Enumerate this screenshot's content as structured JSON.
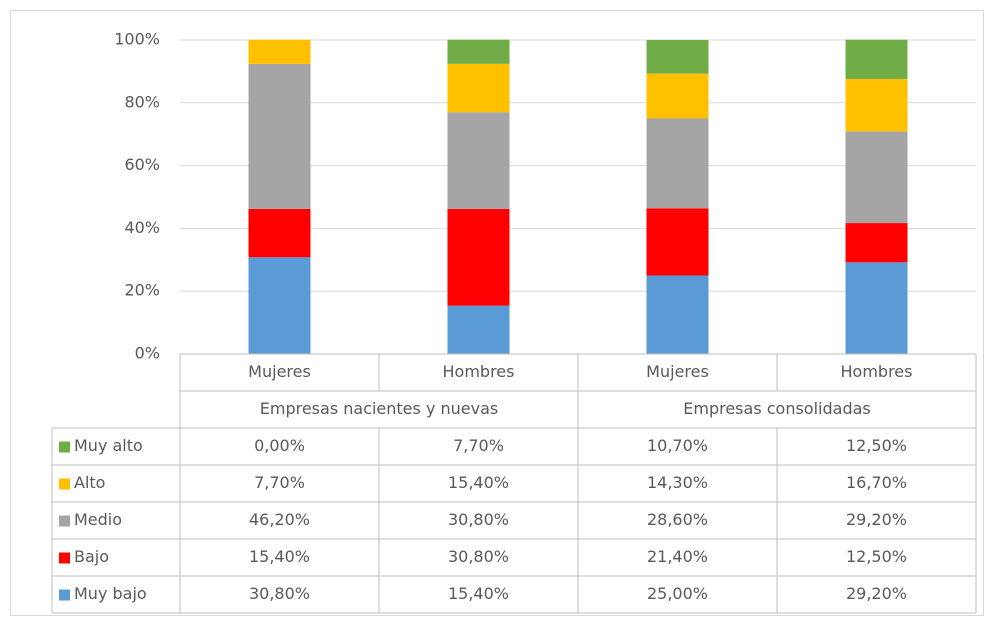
{
  "chart_data": {
    "type": "stacked_bar",
    "categories": [
      "Mujeres",
      "Hombres",
      "Mujeres",
      "Hombres"
    ],
    "groups": [
      "Empresas nacientes y nuevas",
      "Empresas consolidadas"
    ],
    "series": [
      {
        "name": "Muy bajo",
        "color": "#5b9bd5",
        "values": [
          30.8,
          15.4,
          25,
          29.2
        ],
        "value_labels": [
          "30,80%",
          "15,40%",
          "25,00%",
          "29,20%"
        ]
      },
      {
        "name": "Bajo",
        "color": "#ff0000",
        "values": [
          15.4,
          30.8,
          21.4,
          12.5
        ],
        "value_labels": [
          "15,40%",
          "30,80%",
          "21,40%",
          "12,50%"
        ]
      },
      {
        "name": "Medio",
        "color": "#a5a5a5",
        "values": [
          46.2,
          30.8,
          28.6,
          29.2
        ],
        "value_labels": [
          "46,20%",
          "30,80%",
          "28,60%",
          "29,20%"
        ]
      },
      {
        "name": "Alto",
        "color": "#ffc000",
        "values": [
          7.7,
          15.4,
          14.3,
          16.7
        ],
        "value_labels": [
          "7,70%",
          "15,40%",
          "14,30%",
          "16,70%"
        ]
      },
      {
        "name": "Muy alto",
        "color": "#70ad47",
        "values": [
          0,
          7.7,
          10.7,
          12.5
        ],
        "value_labels": [
          "0,00%",
          "7,70%",
          "10,70%",
          "12,50%"
        ]
      }
    ],
    "ylim": [
      0,
      100
    ],
    "yticks": [
      {
        "value": 0,
        "label": "0%"
      },
      {
        "value": 20,
        "label": "20%"
      },
      {
        "value": 40,
        "label": "40%"
      },
      {
        "value": 60,
        "label": "60%"
      },
      {
        "value": 80,
        "label": "80%"
      },
      {
        "value": 100,
        "label": "100%"
      }
    ],
    "grid": true
  }
}
